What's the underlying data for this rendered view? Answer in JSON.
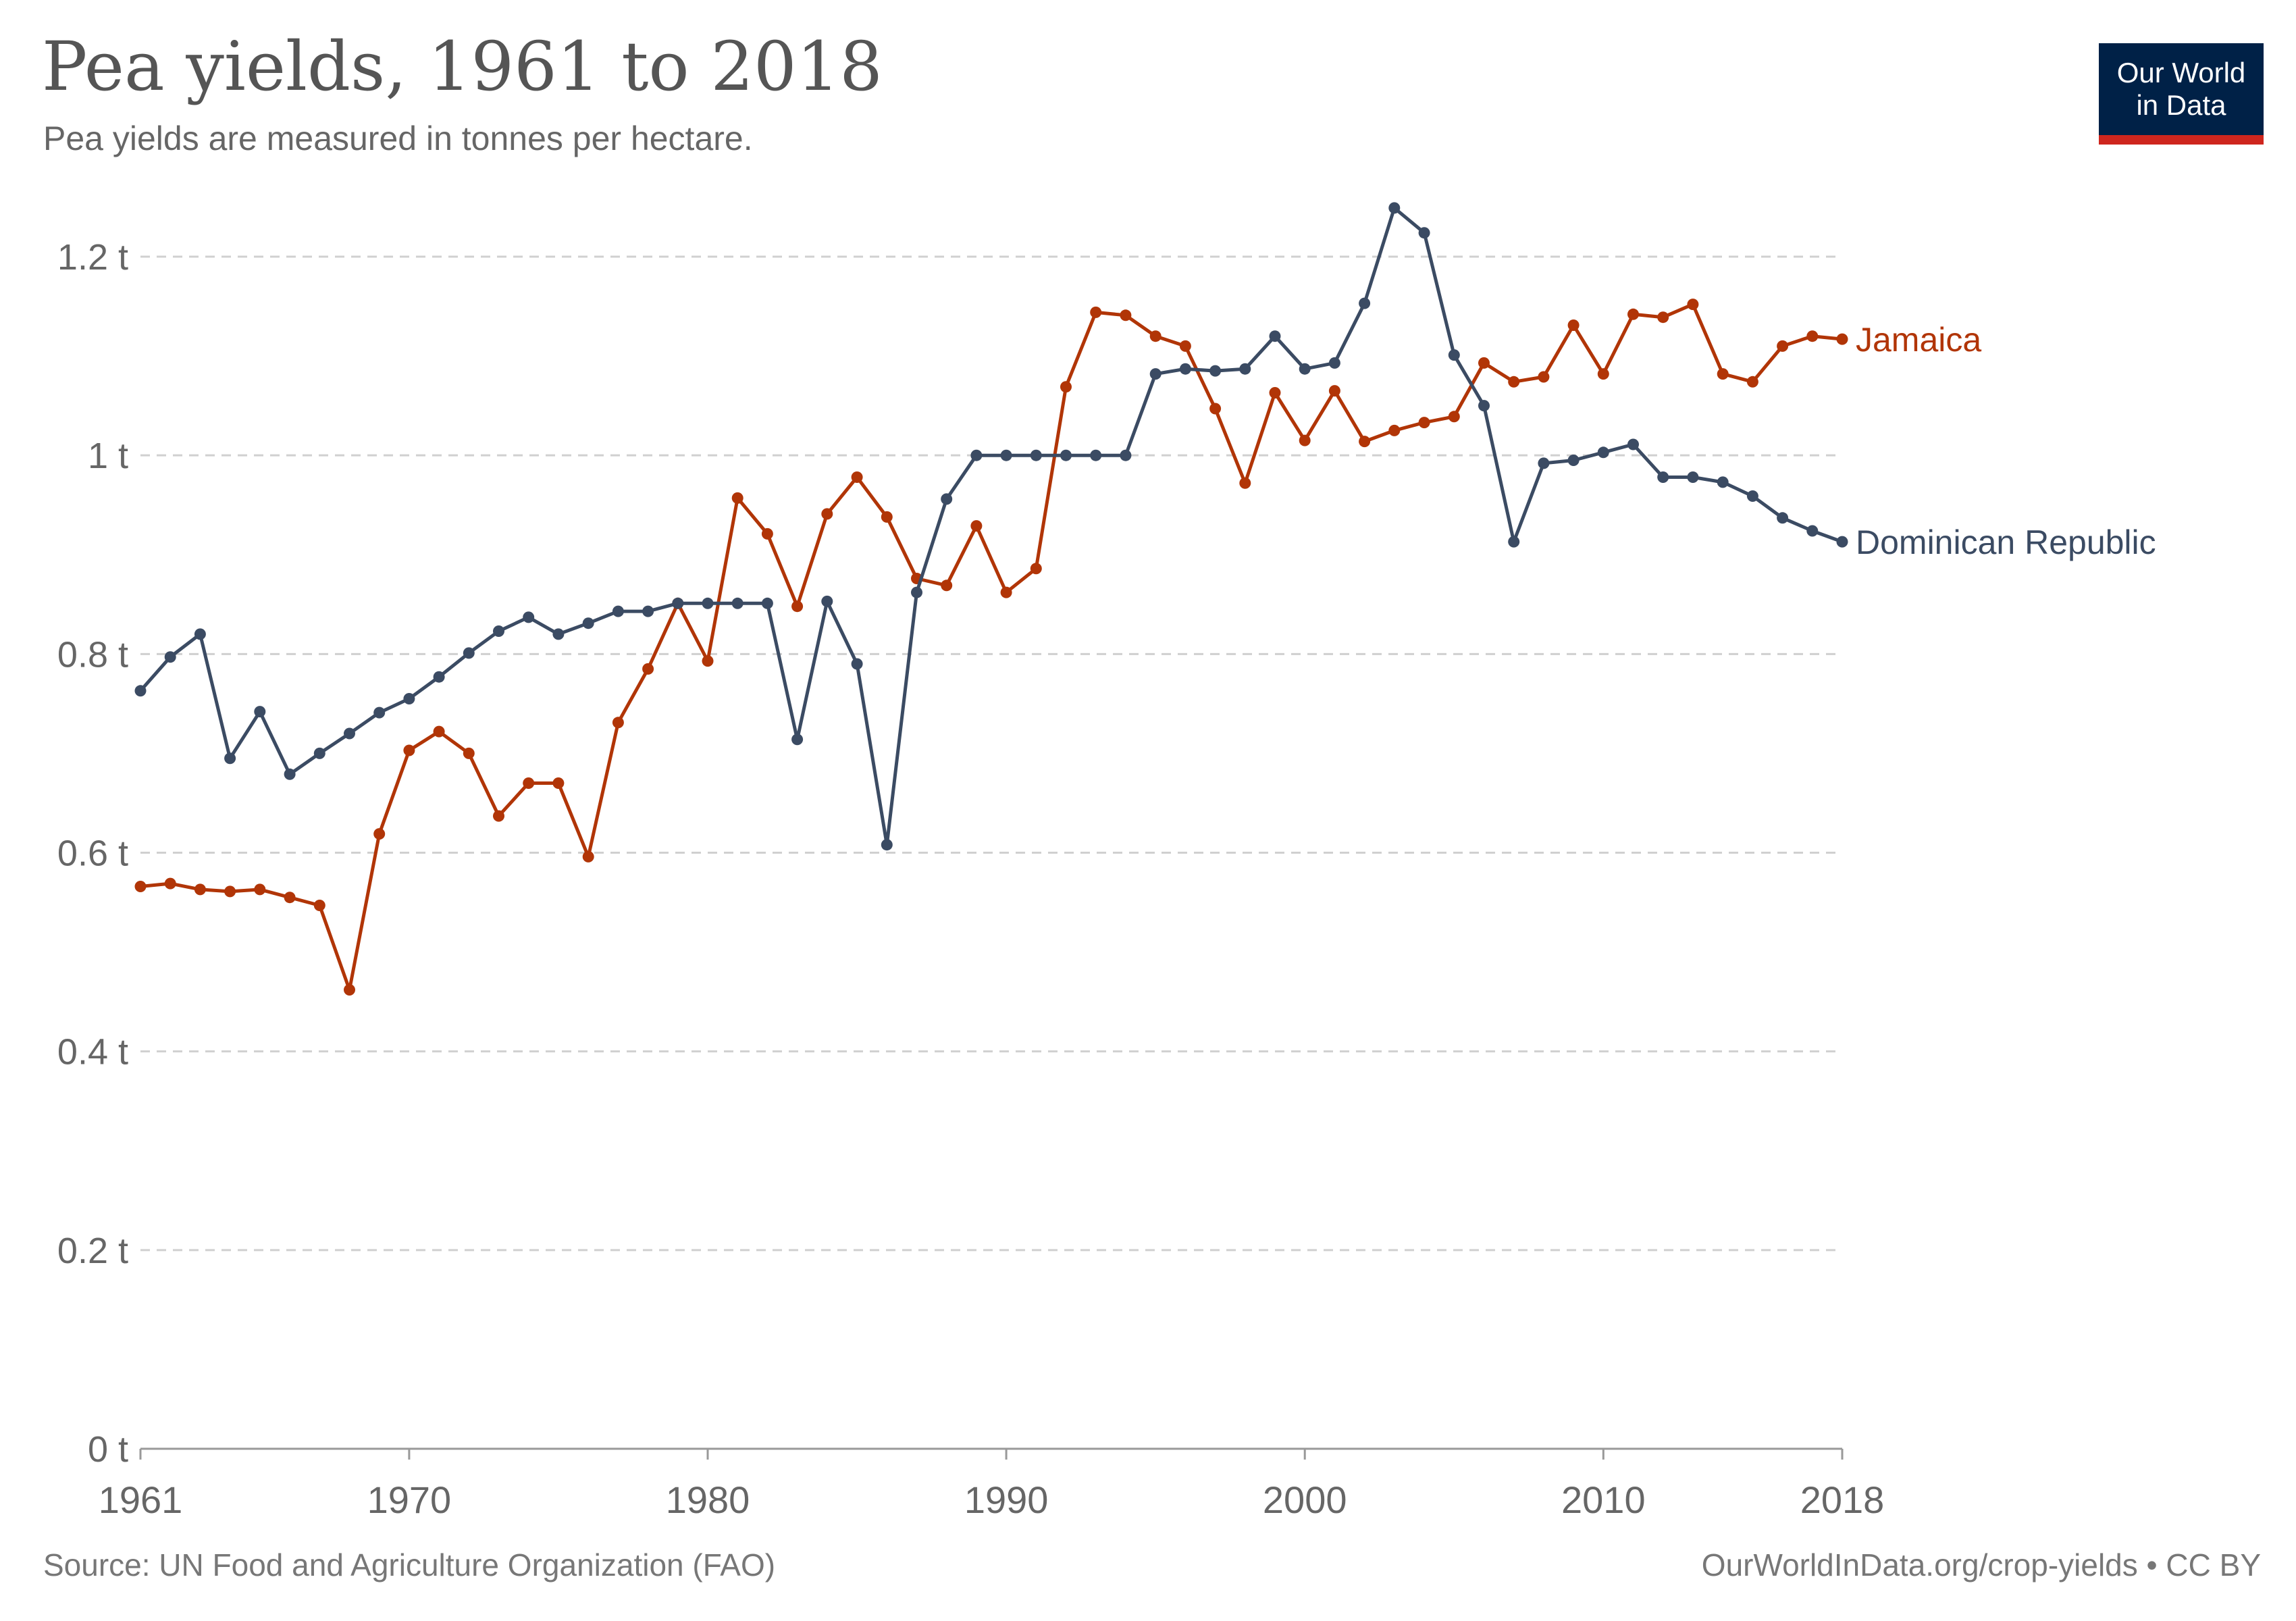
{
  "header": {
    "title": "Pea yields, 1961 to 2018",
    "subtitle": "Pea yields are measured in tonnes per hectare."
  },
  "logo": {
    "line1": "Our World",
    "line2": "in Data"
  },
  "footer": {
    "source": "Source: UN Food and Agriculture Organization (FAO)",
    "credit": "OurWorldInData.org/crop-yields • CC BY"
  },
  "colors": {
    "jamaica": "#b13507",
    "dominican_republic": "#3b4b63",
    "grid": "#d0d0d0",
    "logo_bg": "#002147",
    "logo_accent": "#ce261e"
  },
  "chart_data": {
    "type": "line",
    "title": "Pea yields, 1961 to 2018",
    "subtitle": "Pea yields are measured in tonnes per hectare.",
    "xlabel": "",
    "ylabel": "",
    "xlim": [
      1961,
      2018
    ],
    "ylim": [
      0,
      1.2
    ],
    "x_ticks": [
      1961,
      1970,
      1980,
      1990,
      2000,
      2010,
      2018
    ],
    "y_ticks": [
      0,
      0.2,
      0.4,
      0.6,
      0.8,
      1.0,
      1.2
    ],
    "y_tick_labels": [
      "0 t",
      "0.2 t",
      "0.4 t",
      "0.6 t",
      "0.8 t",
      "1 t",
      "1.2 t"
    ],
    "grid": "horizontal dashed",
    "legend": "inline labels at line ends",
    "x": [
      1961,
      1962,
      1963,
      1964,
      1965,
      1966,
      1967,
      1968,
      1969,
      1970,
      1971,
      1972,
      1973,
      1974,
      1975,
      1976,
      1977,
      1978,
      1979,
      1980,
      1981,
      1982,
      1983,
      1984,
      1985,
      1986,
      1987,
      1988,
      1989,
      1990,
      1991,
      1992,
      1993,
      1994,
      1995,
      1996,
      1997,
      1998,
      1999,
      2000,
      2001,
      2002,
      2003,
      2004,
      2005,
      2006,
      2007,
      2008,
      2009,
      2010,
      2011,
      2012,
      2013,
      2014,
      2015,
      2016,
      2017,
      2018
    ],
    "series": [
      {
        "name": "Jamaica",
        "color": "#b13507",
        "values": [
          0.566,
          0.569,
          0.563,
          0.561,
          0.563,
          0.555,
          0.547,
          0.462,
          0.619,
          0.703,
          0.722,
          0.7,
          0.637,
          0.67,
          0.67,
          0.596,
          0.731,
          0.785,
          0.851,
          0.793,
          0.957,
          0.921,
          0.848,
          0.941,
          0.978,
          0.938,
          0.876,
          0.869,
          0.929,
          0.862,
          0.886,
          1.069,
          1.144,
          1.141,
          1.12,
          1.11,
          1.047,
          0.972,
          1.063,
          1.015,
          1.065,
          1.014,
          1.025,
          1.033,
          1.039,
          1.093,
          1.074,
          1.079,
          1.131,
          1.082,
          1.142,
          1.139,
          1.152,
          1.082,
          1.074,
          1.11,
          1.12,
          1.117
        ]
      },
      {
        "name": "Dominican Republic",
        "color": "#3b4b63",
        "values": [
          0.763,
          0.797,
          0.82,
          0.695,
          0.742,
          0.679,
          0.7,
          0.72,
          0.741,
          0.755,
          0.777,
          0.801,
          0.823,
          0.837,
          0.82,
          0.831,
          0.843,
          0.843,
          0.851,
          0.851,
          0.851,
          0.851,
          0.714,
          0.853,
          0.79,
          0.608,
          0.862,
          0.956,
          1.0,
          1.0,
          1.0,
          1.0,
          1.0,
          1.0,
          1.082,
          1.087,
          1.085,
          1.087,
          1.12,
          1.087,
          1.093,
          1.153,
          1.249,
          1.224,
          1.101,
          1.05,
          0.913,
          0.992,
          0.995,
          1.003,
          1.011,
          0.978,
          0.978,
          0.973,
          0.959,
          0.937,
          0.924,
          0.913
        ]
      }
    ]
  }
}
